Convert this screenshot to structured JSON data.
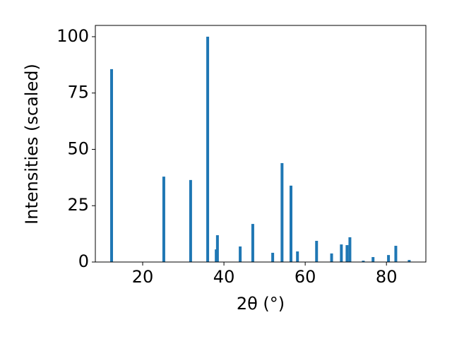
{
  "chart_data": {
    "type": "bar",
    "x_label": "2θ (°)",
    "y_label": "Intensities (scaled)",
    "x": [
      12.35,
      25.2,
      31.8,
      36.0,
      38.1,
      38.4,
      44.0,
      47.1,
      52.0,
      54.3,
      56.5,
      58.1,
      62.8,
      66.5,
      68.9,
      70.3,
      71.0,
      74.3,
      76.7,
      80.5,
      82.3,
      85.6
    ],
    "values": [
      85.6,
      37.9,
      36.4,
      100,
      5.6,
      11.9,
      6.9,
      16.9,
      4.1,
      43.9,
      33.9,
      4.7,
      9.4,
      3.8,
      7.8,
      7.5,
      11.0,
      0.6,
      2.2,
      3.1,
      7.2,
      0.9
    ],
    "color": "#1f77b4",
    "xlim": [
      8.35,
      89.7
    ],
    "xticks": [
      20,
      40,
      60,
      80
    ],
    "ylim": [
      0,
      105
    ],
    "yticks": [
      0,
      25,
      50,
      75,
      100
    ],
    "grid": false
  }
}
